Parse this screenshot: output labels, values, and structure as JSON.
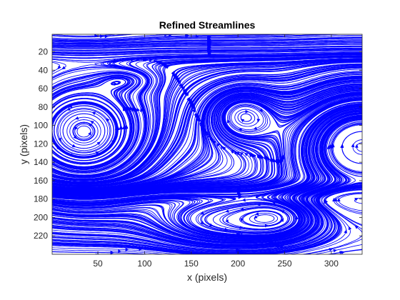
{
  "chart_data": {
    "type": "streamline",
    "title": "Refined Streamlines",
    "xlabel": "x (pixels)",
    "ylabel": "y (pixels)",
    "xlim": [
      1,
      333
    ],
    "ylim": [
      1,
      240
    ],
    "y_reversed": true,
    "xticks": [
      50,
      100,
      150,
      200,
      250,
      300
    ],
    "yticks": [
      20,
      40,
      60,
      80,
      100,
      120,
      140,
      160,
      180,
      200,
      220
    ],
    "line_color": "#0000ff",
    "grid": false,
    "legend": "none",
    "features": [
      {
        "kind": "vortex",
        "cx": 35,
        "cy": 112,
        "sense": "counterclockwise",
        "extent": [
          70,
          58
        ]
      },
      {
        "kind": "vortex",
        "cx": 205,
        "cy": 88,
        "sense": "clockwise",
        "extent": [
          38,
          30
        ]
      },
      {
        "kind": "vortex",
        "cx": 333,
        "cy": 118,
        "sense": "clockwise",
        "extent": [
          75,
          60
        ]
      },
      {
        "kind": "vortex",
        "cx": 195,
        "cy": 205,
        "sense": "counterclockwise",
        "extent": [
          75,
          25
        ]
      },
      {
        "kind": "vortex",
        "cx": 240,
        "cy": 200,
        "sense": "counterclockwise",
        "extent": [
          35,
          18
        ]
      },
      {
        "kind": "vortex",
        "cx": 80,
        "cy": 51,
        "sense": "counterclockwise",
        "extent": [
          30,
          12
        ]
      },
      {
        "kind": "jet",
        "y": 20,
        "direction": "+x",
        "speed": 1.8
      },
      {
        "kind": "jet",
        "y": 170,
        "direction": "+x",
        "speed": 1.8
      }
    ]
  }
}
